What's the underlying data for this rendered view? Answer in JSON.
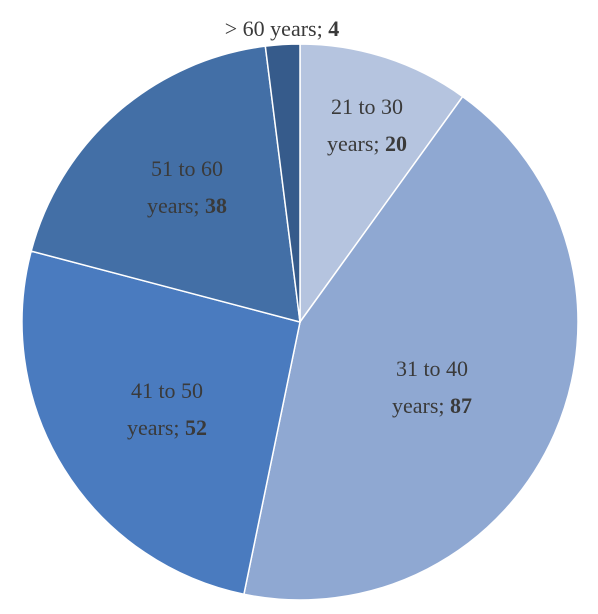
{
  "chart_data": {
    "type": "pie",
    "categories": [
      "21 to 30 years",
      "31 to 40 years",
      "41 to 50 years",
      "51 to 60 years",
      "> 60 years"
    ],
    "values": [
      20,
      87,
      52,
      38,
      4
    ],
    "colors": [
      "#b5c4df",
      "#8fa8d2",
      "#4a7bbf",
      "#436fa6",
      "#365b8b"
    ],
    "label_separator": ";"
  }
}
